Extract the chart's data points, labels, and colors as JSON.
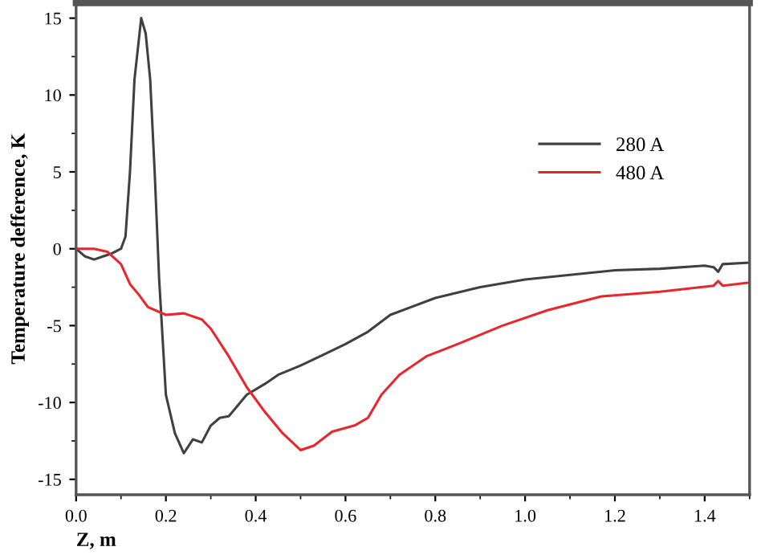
{
  "chart_data": {
    "type": "line",
    "xlabel": "Z, m",
    "ylabel": "Temperature defference, K",
    "xlim": [
      0,
      1.5
    ],
    "xticks": [
      {
        "value": 0,
        "label": "0.0"
      },
      0.2,
      0.4,
      0.6,
      0.8,
      {
        "value": 1,
        "label": "1.0"
      },
      1.2,
      1.4
    ],
    "ylim": [
      -16,
      16
    ],
    "yticks": [
      -15,
      -10,
      -5,
      0,
      5,
      10,
      15
    ],
    "grid": false,
    "legend": "right",
    "marker": "none",
    "line_style": "solid",
    "series": [
      {
        "name": "280 A",
        "color": "#404040",
        "x": [
          0,
          0.02,
          0.04,
          0.06,
          0.08,
          0.1,
          0.11,
          0.12,
          0.13,
          0.145,
          0.155,
          0.165,
          0.175,
          0.185,
          0.2,
          0.22,
          0.24,
          0.26,
          0.28,
          0.3,
          0.32,
          0.34,
          0.38,
          0.42,
          0.45,
          0.5,
          0.55,
          0.6,
          0.65,
          0.7,
          0.8,
          0.9,
          1.0,
          1.1,
          1.2,
          1.3,
          1.4,
          1.42,
          1.43,
          1.44,
          1.5
        ],
        "values": [
          0,
          -0.5,
          -0.7,
          -0.5,
          -0.3,
          0,
          0.8,
          5,
          11,
          15,
          14,
          11,
          5,
          -2,
          -9.5,
          -12,
          -13.3,
          -12.4,
          -12.6,
          -11.5,
          -11,
          -10.9,
          -9.5,
          -8.8,
          -8.2,
          -7.6,
          -6.9,
          -6.2,
          -5.4,
          -4.3,
          -3.2,
          -2.5,
          -2,
          -1.7,
          -1.4,
          -1.3,
          -1.1,
          -1.2,
          -1.5,
          -1,
          -0.9
        ]
      },
      {
        "name": "480 A",
        "color": "#e8262c",
        "x": [
          0,
          0.04,
          0.07,
          0.1,
          0.12,
          0.14,
          0.16,
          0.2,
          0.24,
          0.28,
          0.3,
          0.34,
          0.38,
          0.42,
          0.46,
          0.5,
          0.53,
          0.57,
          0.62,
          0.65,
          0.68,
          0.72,
          0.78,
          0.85,
          0.95,
          1.05,
          1.17,
          1.3,
          1.42,
          1.43,
          1.44,
          1.5
        ],
        "values": [
          0,
          0,
          -0.2,
          -1,
          -2.3,
          -3,
          -3.8,
          -4.3,
          -4.2,
          -4.6,
          -5.2,
          -7,
          -9,
          -10.6,
          -12,
          -13.1,
          -12.8,
          -11.9,
          -11.5,
          -11,
          -9.5,
          -8.2,
          -7,
          -6.2,
          -5,
          -4,
          -3.1,
          -2.8,
          -2.4,
          -2.1,
          -2.4,
          -2.2
        ]
      }
    ]
  }
}
